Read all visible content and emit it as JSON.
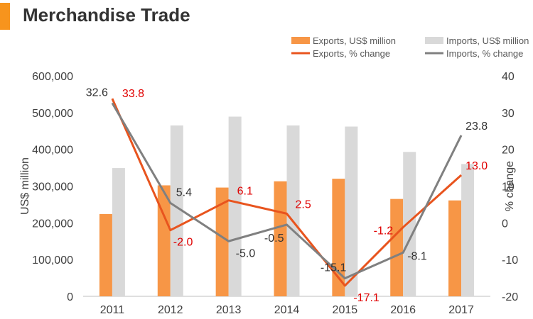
{
  "header": {
    "title": "Merchandise Trade"
  },
  "chart_data": {
    "type": "bar",
    "categories": [
      "2011",
      "2012",
      "2013",
      "2014",
      "2015",
      "2016",
      "2017"
    ],
    "ylabel": "US$ million",
    "y2label": "% change",
    "ylim": [
      0,
      600000
    ],
    "y2lim": [
      -20,
      40
    ],
    "yticks": [
      "0",
      "100,000",
      "200,000",
      "300,000",
      "400,000",
      "500,000",
      "600,000"
    ],
    "y2ticks": [
      "-20",
      "-10",
      "0",
      "10",
      "20",
      "30",
      "40"
    ],
    "grid": false,
    "legend_position": "top-right",
    "series": [
      {
        "name": "Exports, US$ million",
        "kind": "bar",
        "axis": "left",
        "color": "#f79646",
        "values": [
          224000,
          302000,
          296000,
          313000,
          320000,
          265000,
          261000
        ]
      },
      {
        "name": "Imports, US$ million",
        "kind": "bar",
        "axis": "left",
        "color": "#d9d9d9",
        "values": [
          349000,
          465000,
          489000,
          465000,
          462000,
          393000,
          360000
        ]
      },
      {
        "name": "Exports, % change",
        "kind": "line",
        "axis": "right",
        "color": "#e8541e",
        "label_color": "#e00000",
        "values": [
          33.8,
          -2.0,
          6.1,
          2.5,
          -17.1,
          -1.2,
          13.0
        ],
        "labels": [
          "33.8",
          "-2.0",
          "6.1",
          "2.5",
          "-17.1",
          "-1.2",
          "13.0"
        ]
      },
      {
        "name": "Imports, % change",
        "kind": "line",
        "axis": "right",
        "color": "#808080",
        "label_color": "#333333",
        "values": [
          32.6,
          5.4,
          -5.0,
          -0.5,
          -15.1,
          -8.1,
          23.8
        ],
        "labels": [
          "32.6",
          "5.4",
          "-5.0",
          "-0.5",
          "-15.1",
          "-8.1",
          "23.8"
        ]
      }
    ]
  }
}
